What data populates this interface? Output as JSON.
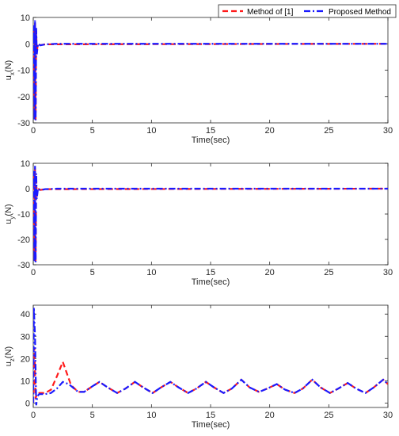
{
  "legend": {
    "entries": [
      {
        "label": "Method of [1]",
        "color": "#ff1a1a",
        "dash": "dash"
      },
      {
        "label": "Proposed Method",
        "color": "#1a1aff",
        "dash": "dashdot"
      }
    ],
    "placement": "top-right"
  },
  "chart_data": [
    {
      "type": "line",
      "xlabel": "Time(sec)",
      "ylabel_main": "u",
      "ylabel_sub": "x",
      "ylabel_unit": "(N)",
      "xlim": [
        0,
        30
      ],
      "ylim": [
        -30,
        10
      ],
      "xticks": [
        0,
        5,
        10,
        15,
        20,
        25,
        30
      ],
      "yticks": [
        10,
        0,
        -10,
        -20,
        -30
      ],
      "grid": false,
      "series": [
        {
          "name": "Method of [1]",
          "color": "#ff1a1a",
          "dash": "dash",
          "x": [
            0,
            0.05,
            0.1,
            0.15,
            0.2,
            0.25,
            0.3,
            0.4,
            0.6,
            1,
            30
          ],
          "y": [
            0,
            6,
            -28,
            8,
            -29,
            5,
            -3,
            0,
            -0.5,
            -0.2,
            0
          ]
        },
        {
          "name": "Proposed Method",
          "color": "#1a1aff",
          "dash": "dashdot",
          "x": [
            0,
            0.05,
            0.1,
            0.15,
            0.2,
            0.25,
            0.3,
            0.4,
            0.6,
            1,
            2,
            5,
            10,
            15,
            20,
            25,
            30
          ],
          "y": [
            0,
            7,
            -29,
            9,
            -29,
            6,
            -4,
            0,
            -0.6,
            -0.2,
            0,
            0,
            0,
            0,
            0,
            0,
            0
          ]
        }
      ]
    },
    {
      "type": "line",
      "xlabel": "Time(sec)",
      "ylabel_main": "u",
      "ylabel_sub": "y",
      "ylabel_unit": "(N)",
      "xlim": [
        0,
        30
      ],
      "ylim": [
        -30,
        10
      ],
      "xticks": [
        0,
        5,
        10,
        15,
        20,
        25,
        30
      ],
      "yticks": [
        10,
        0,
        -10,
        -20,
        -30
      ],
      "grid": false,
      "series": [
        {
          "name": "Method of [1]",
          "color": "#ff1a1a",
          "dash": "dash",
          "x": [
            0,
            0.05,
            0.1,
            0.15,
            0.2,
            0.25,
            0.3,
            0.4,
            0.6,
            1,
            30
          ],
          "y": [
            0,
            6,
            -28,
            8,
            -29,
            5,
            -3,
            0,
            -0.5,
            -0.2,
            0
          ]
        },
        {
          "name": "Proposed Method",
          "color": "#1a1aff",
          "dash": "dashdot",
          "x": [
            0,
            0.05,
            0.1,
            0.15,
            0.2,
            0.25,
            0.3,
            0.4,
            0.6,
            1,
            2,
            5,
            10,
            15,
            20,
            25,
            30
          ],
          "y": [
            0,
            7,
            -29,
            9,
            -29,
            6,
            -4,
            0,
            -0.6,
            -0.2,
            0,
            0,
            0,
            0,
            0,
            0,
            0
          ]
        }
      ]
    },
    {
      "type": "line",
      "xlabel": "Time(sec)",
      "ylabel_main": "u",
      "ylabel_sub": "z",
      "ylabel_unit": "(N)",
      "xlim": [
        0,
        30
      ],
      "ylim": [
        -2,
        44
      ],
      "xticks": [
        0,
        5,
        10,
        15,
        20,
        25,
        30
      ],
      "yticks": [
        40,
        30,
        20,
        10,
        0
      ],
      "grid": false,
      "series": [
        {
          "name": "Method of [1]",
          "color": "#ff1a1a",
          "dash": "dash",
          "x": [
            0,
            0.1,
            0.2,
            0.3,
            0.5,
            1.0,
            1.5,
            2.0,
            2.5,
            2.8,
            3.2,
            3.8,
            4.3,
            5.0,
            5.6,
            6.3,
            7.1,
            7.8,
            8.6,
            9.3,
            10.1,
            10.8,
            11.6,
            12.3,
            13.1,
            13.8,
            14.6,
            15.3,
            16.1,
            16.8,
            17.6,
            18.3,
            19.1,
            19.8,
            20.6,
            21.3,
            22.1,
            22.8,
            23.6,
            24.3,
            25.1,
            25.8,
            26.6,
            27.3,
            28.1,
            28.8,
            29.6,
            30
          ],
          "y": [
            0,
            25,
            2,
            4,
            4.5,
            4.5,
            6,
            12,
            18.5,
            14,
            8,
            5,
            5,
            7.5,
            9.5,
            7,
            4.5,
            6.5,
            9.5,
            7,
            4.5,
            7,
            9.5,
            7,
            4.5,
            6.5,
            9.5,
            7,
            4.5,
            6.5,
            10.5,
            7,
            5,
            6.5,
            8.5,
            6,
            4.5,
            6.5,
            10.5,
            7,
            4.5,
            6.5,
            9,
            6.5,
            4.5,
            7,
            10.5,
            8.5
          ]
        },
        {
          "name": "Proposed Method",
          "color": "#1a1aff",
          "dash": "dashdot",
          "x": [
            0,
            0.05,
            0.15,
            0.25,
            0.35,
            0.5,
            1.0,
            1.5,
            2.0,
            2.5,
            3.0,
            3.8,
            4.3,
            5.0,
            5.6,
            6.3,
            7.1,
            7.8,
            8.6,
            9.3,
            10.1,
            10.8,
            11.6,
            12.3,
            13.1,
            13.8,
            14.6,
            15.3,
            16.1,
            16.8,
            17.6,
            18.3,
            19.1,
            19.8,
            20.6,
            21.3,
            22.1,
            22.8,
            23.6,
            24.3,
            25.1,
            25.8,
            26.6,
            27.3,
            28.1,
            28.8,
            29.6,
            30
          ],
          "y": [
            0,
            43,
            30,
            -1,
            3,
            4,
            4,
            4.5,
            6.5,
            9.5,
            8.5,
            5,
            5,
            7.5,
            9.5,
            7,
            4.5,
            6.5,
            9.5,
            7,
            4.5,
            7,
            9.5,
            7,
            4.5,
            6.5,
            9.5,
            7,
            4.5,
            6.5,
            10.5,
            7,
            5,
            6.5,
            8.5,
            6,
            4.5,
            6.5,
            10.5,
            7,
            4.5,
            6.5,
            9,
            6.5,
            4.5,
            7,
            10.5,
            8.5
          ]
        }
      ]
    }
  ]
}
